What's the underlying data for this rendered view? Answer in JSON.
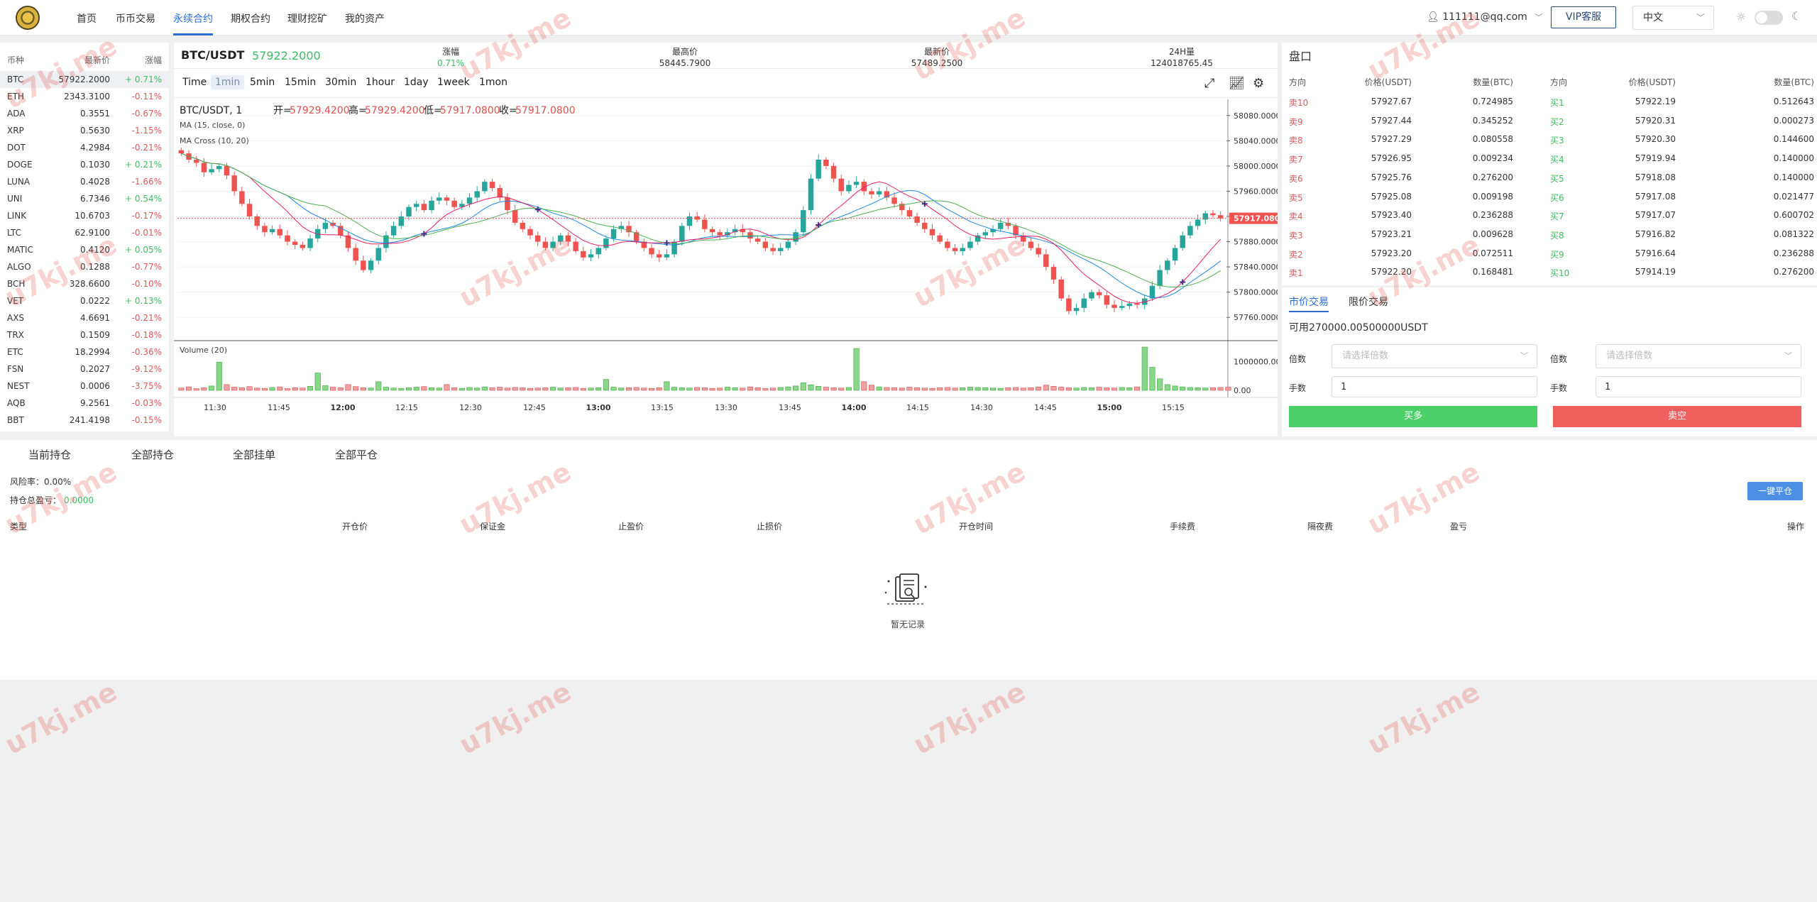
{
  "nav": {
    "items": [
      "首页",
      "币币交易",
      "永续合约",
      "期权合约",
      "理财挖矿",
      "我的资产"
    ],
    "active_index": 2,
    "user": "111111@qq.com",
    "vip_label": "VIP客服",
    "language": "中文"
  },
  "markets": {
    "headers": [
      "币种",
      "最新价",
      "涨幅"
    ],
    "rows": [
      {
        "sym": "BTC",
        "price": "57922.2000",
        "change": "+ 0.71%"
      },
      {
        "sym": "ETH",
        "price": "2343.3100",
        "change": "-0.11%"
      },
      {
        "sym": "ADA",
        "price": "0.3551",
        "change": "-0.67%"
      },
      {
        "sym": "XRP",
        "price": "0.5630",
        "change": "-1.15%"
      },
      {
        "sym": "DOT",
        "price": "4.2984",
        "change": "-0.21%"
      },
      {
        "sym": "DOGE",
        "price": "0.1030",
        "change": "+ 0.21%"
      },
      {
        "sym": "LUNA",
        "price": "0.4028",
        "change": "-1.66%"
      },
      {
        "sym": "UNI",
        "price": "6.7346",
        "change": "+ 0.54%"
      },
      {
        "sym": "LINK",
        "price": "10.6703",
        "change": "-0.17%"
      },
      {
        "sym": "LTC",
        "price": "62.9100",
        "change": "-0.01%"
      },
      {
        "sym": "MATIC",
        "price": "0.4120",
        "change": "+ 0.05%"
      },
      {
        "sym": "ALGO",
        "price": "0.1288",
        "change": "-0.77%"
      },
      {
        "sym": "BCH",
        "price": "328.6600",
        "change": "-0.10%"
      },
      {
        "sym": "VET",
        "price": "0.0222",
        "change": "+ 0.13%"
      },
      {
        "sym": "AXS",
        "price": "4.6691",
        "change": "-0.21%"
      },
      {
        "sym": "TRX",
        "price": "0.1509",
        "change": "-0.18%"
      },
      {
        "sym": "ETC",
        "price": "18.2994",
        "change": "-0.36%"
      },
      {
        "sym": "FSN",
        "price": "0.2027",
        "change": "-9.12%"
      },
      {
        "sym": "NEST",
        "price": "0.0006",
        "change": "-3.75%"
      },
      {
        "sym": "AQB",
        "price": "9.2561",
        "change": "-0.03%"
      },
      {
        "sym": "BBT",
        "price": "241.4198",
        "change": "-0.15%"
      }
    ]
  },
  "ticker": {
    "pair": "BTC/USDT",
    "price": "57922.2000",
    "stats": [
      {
        "label": "涨幅",
        "value": "0.71%",
        "color": "#3cbd5f"
      },
      {
        "label": "最高价",
        "value": "58445.7900",
        "color": "#333333"
      },
      {
        "label": "最新价",
        "value": "57489.2500",
        "color": "#333333"
      },
      {
        "label": "24H量",
        "value": "124018765.45",
        "color": "#333333"
      }
    ]
  },
  "intervals": [
    "Time",
    "1min",
    "5min",
    "15min",
    "30min",
    "1hour",
    "1day",
    "1week",
    "1mon"
  ],
  "active_interval": "1min",
  "chart_data": {
    "type": "candlestick",
    "title": "BTC/USDT, 1",
    "ohlc": {
      "open_label": "开=",
      "open": "57929.4200",
      "high_label": "高=",
      "high": "57929.4200",
      "low_label": "低=",
      "low": "57917.0800",
      "close_label": "收=",
      "close": "57917.0800"
    },
    "indicators": [
      "MA (15, close, 0)",
      "MA Cross (10, 20)"
    ],
    "volume_label": "Volume (20)",
    "y_ticks": [
      58080,
      58040,
      58000,
      57960,
      57920,
      57880,
      57840,
      57800,
      57760
    ],
    "y_tick_labels": [
      "58080.0000",
      "58040.0000",
      "58000.0000",
      "57960.0000",
      "57920.0000",
      "57880.0000",
      "57840.0000",
      "57800.0000",
      "57760.0000"
    ],
    "ylim": [
      57740,
      58100
    ],
    "current_price_label": "57917.0800",
    "current_price": 57917.08,
    "volume_ticks": [
      "1000000.00",
      "0.00"
    ],
    "x_ticks": [
      "11:30",
      "11:45",
      "12:00",
      "12:15",
      "12:30",
      "12:45",
      "13:00",
      "13:15",
      "13:30",
      "13:45",
      "14:00",
      "14:15",
      "14:30",
      "14:45",
      "15:00",
      "15:15"
    ],
    "close_series": [
      58020,
      58010,
      58005,
      57990,
      57995,
      58000,
      57985,
      57960,
      57940,
      57920,
      57905,
      57895,
      57900,
      57890,
      57880,
      57875,
      57870,
      57885,
      57900,
      57910,
      57905,
      57890,
      57870,
      57850,
      57835,
      57850,
      57870,
      57890,
      57905,
      57920,
      57935,
      57940,
      57930,
      57945,
      57950,
      57945,
      57935,
      57940,
      57950,
      57960,
      57975,
      57965,
      57950,
      57930,
      57910,
      57900,
      57890,
      57880,
      57870,
      57880,
      57890,
      57880,
      57865,
      57855,
      57860,
      57870,
      57885,
      57900,
      57905,
      57895,
      57880,
      57870,
      57860,
      57855,
      57860,
      57880,
      57905,
      57920,
      57915,
      57900,
      57895,
      57890,
      57895,
      57900,
      57895,
      57885,
      57880,
      57870,
      57865,
      57870,
      57880,
      57895,
      57930,
      57980,
      58010,
      58000,
      57980,
      57960,
      57970,
      57975,
      57960,
      57955,
      57960,
      57950,
      57940,
      57930,
      57920,
      57910,
      57900,
      57890,
      57880,
      57870,
      57865,
      57870,
      57880,
      57890,
      57895,
      57900,
      57910,
      57905,
      57890,
      57880,
      57870,
      57860,
      57840,
      57820,
      57790,
      57770,
      57775,
      57790,
      57800,
      57795,
      57780,
      57775,
      57778,
      57782,
      57780,
      57790,
      57810,
      57835,
      57850,
      57870,
      57890,
      57905,
      57915,
      57925,
      57922,
      57917
    ],
    "volume_series": [
      80000,
      120000,
      60000,
      90000,
      150000,
      980000,
      200000,
      110000,
      90000,
      130000,
      80000,
      70000,
      100000,
      120000,
      60000,
      90000,
      80000,
      140000,
      600000,
      160000,
      110000,
      90000,
      200000,
      130000,
      90000,
      80000,
      300000,
      110000,
      80000,
      70000,
      90000,
      110000,
      130000,
      90000,
      80000,
      200000,
      90000,
      70000,
      100000,
      80000,
      120000,
      90000,
      110000,
      80000,
      100000,
      90000,
      70000,
      80000,
      90000,
      110000,
      80000,
      90000,
      100000,
      70000,
      80000,
      90000,
      380000,
      110000,
      80000,
      90000,
      100000,
      80000,
      70000,
      90000,
      300000,
      110000,
      90000,
      80000,
      100000,
      90000,
      70000,
      80000,
      110000,
      90000,
      80000,
      120000,
      90000,
      70000,
      80000,
      100000,
      120000,
      150000,
      260000,
      190000,
      140000,
      110000,
      90000,
      80000,
      100000,
      1450000,
      300000,
      180000,
      120000,
      100000,
      90000,
      80000,
      110000,
      90000,
      80000,
      70000,
      90000,
      100000,
      80000,
      90000,
      110000,
      100000,
      90000,
      80000,
      70000,
      90000,
      100000,
      80000,
      90000,
      120000,
      180000,
      140000,
      110000,
      90000,
      80000,
      100000,
      90000,
      110000,
      90000,
      80000,
      100000,
      90000,
      120000,
      1500000,
      800000,
      400000,
      200000,
      150000,
      120000,
      100000,
      90000,
      80000,
      90000,
      100000,
      110000
    ]
  },
  "orderbook": {
    "title": "盘口",
    "headers": [
      "方向",
      "价格(USDT)",
      "数量(BTC)",
      "方向",
      "价格(USDT)",
      "数量(BTC)"
    ],
    "rows": [
      {
        "sell_label": "卖10",
        "sell_price": "57927.67",
        "sell_qty": "0.724985",
        "buy_label": "买1",
        "buy_price": "57922.19",
        "buy_qty": "0.512643"
      },
      {
        "sell_label": "卖9",
        "sell_price": "57927.44",
        "sell_qty": "0.345252",
        "buy_label": "买2",
        "buy_price": "57920.31",
        "buy_qty": "0.000273"
      },
      {
        "sell_label": "卖8",
        "sell_price": "57927.29",
        "sell_qty": "0.080558",
        "buy_label": "买3",
        "buy_price": "57920.30",
        "buy_qty": "0.144600"
      },
      {
        "sell_label": "卖7",
        "sell_price": "57926.95",
        "sell_qty": "0.009234",
        "buy_label": "买4",
        "buy_price": "57919.94",
        "buy_qty": "0.140000"
      },
      {
        "sell_label": "卖6",
        "sell_price": "57925.76",
        "sell_qty": "0.276200",
        "buy_label": "买5",
        "buy_price": "57918.08",
        "buy_qty": "0.140000"
      },
      {
        "sell_label": "卖5",
        "sell_price": "57925.08",
        "sell_qty": "0.009198",
        "buy_label": "买6",
        "buy_price": "57917.08",
        "buy_qty": "0.021477"
      },
      {
        "sell_label": "卖4",
        "sell_price": "57923.40",
        "sell_qty": "0.236288",
        "buy_label": "买7",
        "buy_price": "57917.07",
        "buy_qty": "0.600702"
      },
      {
        "sell_label": "卖3",
        "sell_price": "57923.21",
        "sell_qty": "0.009628",
        "buy_label": "买8",
        "buy_price": "57916.82",
        "buy_qty": "0.081322"
      },
      {
        "sell_label": "卖2",
        "sell_price": "57923.20",
        "sell_qty": "0.072511",
        "buy_label": "买9",
        "buy_price": "57916.64",
        "buy_qty": "0.236288"
      },
      {
        "sell_label": "卖1",
        "sell_price": "57922.20",
        "sell_qty": "0.168481",
        "buy_label": "买10",
        "buy_price": "57914.19",
        "buy_qty": "0.276200"
      }
    ]
  },
  "trade": {
    "tabs": [
      "市价交易",
      "限价交易"
    ],
    "available": "可用270000.00500000USDT",
    "leverage_label": "倍数",
    "leverage_placeholder": "请选择倍数",
    "lots_label": "手数",
    "lots_value": "1",
    "buy_label": "买多",
    "sell_label": "卖空",
    "buy_color": "#4cd16a",
    "sell_color": "#f0605e"
  },
  "positions": {
    "tabs": [
      "当前持仓",
      "全部持仓",
      "全部挂单",
      "全部平仓"
    ],
    "risk_label": "风险率：0.00%",
    "pnl_label": "持仓总盈亏：",
    "pnl_value": "0.0000",
    "close_all_label": "一键平仓",
    "columns": [
      "类型",
      "开仓价",
      "保证金",
      "止盈价",
      "止损价",
      "开仓时间",
      "手续费",
      "隔夜费",
      "盈亏",
      "操作"
    ],
    "empty_text": "暂无记录"
  },
  "watermark": "u7kj.me"
}
